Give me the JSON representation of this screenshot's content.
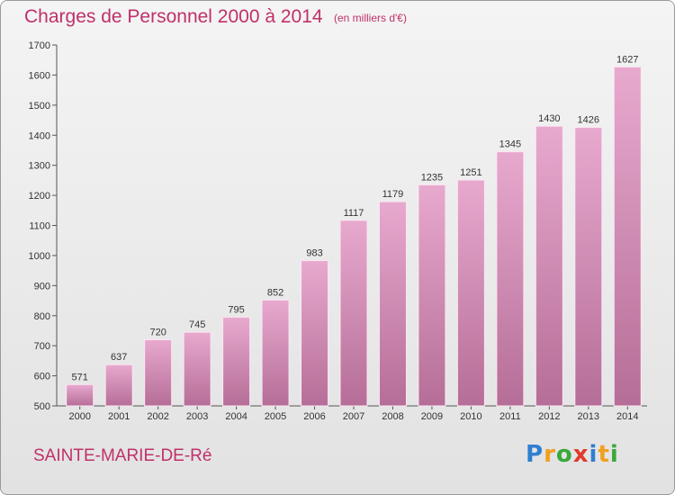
{
  "header": {
    "title": "Charges de Personnel 2000 à 2014",
    "subtitle": "(en milliers d'€)"
  },
  "footer": {
    "commune": "SAINTE-MARIE-DE-Ré",
    "logo_letters": [
      {
        "char": "P",
        "color": "#2f7fd0"
      },
      {
        "char": "r",
        "color": "#f0a020"
      },
      {
        "char": "o",
        "color": "#3aa83a"
      },
      {
        "char": "x",
        "color": "#e03a2a"
      },
      {
        "char": "i",
        "color": "#2f7fd0"
      },
      {
        "char": "t",
        "color": "#f0a020"
      },
      {
        "char": "i",
        "color": "#3aa83a"
      }
    ]
  },
  "colors": {
    "accent": "#c0306a",
    "bar_top": "#e8a9cf",
    "bar_bottom": "#b56e97"
  },
  "chart_data": {
    "type": "bar",
    "title": "Charges de Personnel 2000 à 2014",
    "subtitle": "(en milliers d'€)",
    "categories": [
      "2000",
      "2001",
      "2002",
      "2003",
      "2004",
      "2005",
      "2006",
      "2007",
      "2008",
      "2009",
      "2010",
      "2011",
      "2012",
      "2013",
      "2014"
    ],
    "values": [
      571,
      637,
      720,
      745,
      795,
      852,
      983,
      1117,
      1179,
      1235,
      1251,
      1345,
      1430,
      1426,
      1627
    ],
    "ylim": [
      500,
      1700
    ],
    "yticks": [
      500,
      600,
      700,
      800,
      900,
      1000,
      1100,
      1200,
      1300,
      1400,
      1500,
      1600,
      1700
    ],
    "grid": false,
    "data_labels": true
  }
}
